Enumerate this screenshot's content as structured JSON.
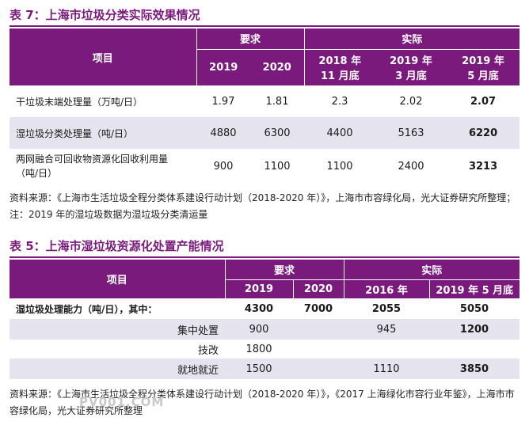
{
  "table7": {
    "title": "表 7：上海市垃圾分类实际效果情况",
    "header": {
      "item": "项目",
      "required": "要求",
      "actual": "实际",
      "years": [
        "2019",
        "2020"
      ],
      "actual_periods": [
        "2018 年 11 月底",
        "2019 年 3 月底",
        "2019 年 5 月底"
      ]
    },
    "rows": [
      {
        "label": "干垃圾末端处理量（万吨/日）",
        "values": [
          "1.97",
          "1.81",
          "2.3",
          "2.02",
          "2.07"
        ]
      },
      {
        "label": "湿垃圾分类处理量（吨/日）",
        "values": [
          "4880",
          "6300",
          "4400",
          "5163",
          "6220"
        ]
      },
      {
        "label": "两网融合可回收物资源化回收利用量（吨/日）",
        "values": [
          "900",
          "1100",
          "1100",
          "2400",
          "3213"
        ]
      }
    ],
    "note": "资料来源：《上海市生活垃圾全程分类体系建设行动计划（2018-2020 年）》，上海市市容绿化局，光大证券研究所整理；注：2019 年的湿垃圾数据为湿垃圾分类清运量"
  },
  "table5": {
    "title": "表 5：上海市湿垃圾资源化处置产能情况",
    "header": {
      "item": "项目",
      "required": "要求",
      "actual": "实际",
      "years": [
        "2019",
        "2020"
      ],
      "actual_periods": [
        "2016 年",
        "2019 年 5 月底"
      ]
    },
    "rows": [
      {
        "label": "湿垃圾处理能力（吨/日），其中：",
        "values": [
          "4300",
          "7000",
          "2055",
          "5050"
        ]
      },
      {
        "label": "集中处置",
        "values": [
          "900",
          "",
          "945",
          "1200"
        ]
      },
      {
        "label": "技改",
        "values": [
          "1800",
          "",
          "",
          ""
        ]
      },
      {
        "label": "就地就近",
        "values": [
          "1500",
          "",
          "1110",
          "3850"
        ]
      }
    ],
    "note": "资料来源：《上海市生活垃圾全程分类体系建设行动计划（2018-2020 年）》，《2017 上海绿化市容行业年鉴》，上海市市容绿化局，光大证券研究所整理"
  },
  "watermark": "PV001.COM"
}
